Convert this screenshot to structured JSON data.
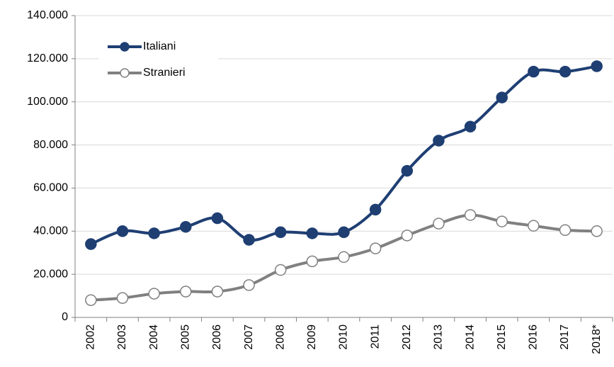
{
  "chart_data": {
    "type": "line",
    "categories": [
      "2002",
      "2003",
      "2004",
      "2005",
      "2006",
      "2007",
      "2008",
      "2009",
      "2010",
      "2011",
      "2012",
      "2013",
      "2014",
      "2015",
      "2016",
      "2017",
      "2018*"
    ],
    "series": [
      {
        "name": "Italiani",
        "color": "#1f3f73",
        "marker_fill": "#1f3f73",
        "values": [
          34000,
          40000,
          39000,
          42000,
          46000,
          36000,
          39500,
          39000,
          39500,
          50000,
          68000,
          82000,
          88500,
          102000,
          114000,
          114000,
          116500
        ]
      },
      {
        "name": "Stranieri",
        "color": "#808080",
        "marker_fill": "#ffffff",
        "values": [
          8000,
          9000,
          11000,
          12000,
          12000,
          15000,
          22000,
          26000,
          28000,
          32000,
          38000,
          43500,
          47500,
          44500,
          42500,
          40500,
          40000
        ]
      }
    ],
    "ylim": [
      0,
      140000
    ],
    "yticks": [
      0,
      {
        "value": 20000,
        "label": "20.000"
      },
      {
        "value": 40000,
        "label": "40.000"
      },
      {
        "value": 60000,
        "label": "60.000"
      },
      {
        "value": 80000,
        "label": "80.000"
      },
      {
        "value": 100000,
        "label": "100.000"
      },
      {
        "value": 120000,
        "label": "120.000"
      },
      {
        "value": 140000,
        "label": "140.000"
      }
    ],
    "grid": true,
    "legend": "upper left"
  }
}
